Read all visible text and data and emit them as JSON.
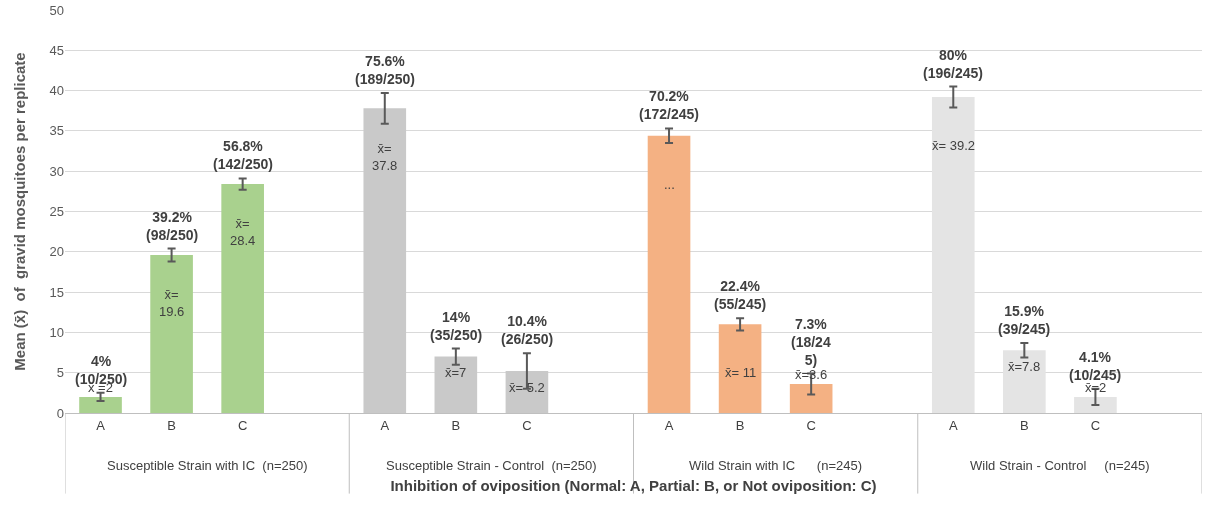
{
  "chart_data": {
    "type": "bar",
    "xlabel": "Inhibition of oviposition (Normal: A, Partial: B, or Not oviposition: C)",
    "ylabel": "Mean (x̄)  of  gravid mosquitoes per replicate",
    "categories": [
      "A",
      "B",
      "C",
      null,
      "A",
      "B",
      "C",
      null,
      "A",
      "B",
      "C",
      null,
      "A",
      "B",
      "C",
      null
    ],
    "series": [
      {
        "colors": [
          "#a9d18e",
          "#a9d18e",
          "#a9d18e",
          "#a9d18e",
          "#c9c9c9",
          "#c9c9c9",
          "#c9c9c9",
          "#c9c9c9",
          "#f4b183",
          "#f4b183",
          "#f4b183",
          "#f4b183",
          "#e4e4e4",
          "#e4e4e4",
          "#e4e4e4",
          "#e4e4e4"
        ],
        "values": [
          2,
          19.6,
          28.4,
          null,
          37.8,
          7,
          5.2,
          null,
          34.4,
          11,
          3.6,
          null,
          39.2,
          7.8,
          2,
          null
        ],
        "errors": [
          0.5,
          0.8,
          0.7,
          null,
          1.9,
          1,
          2.2,
          null,
          0.9,
          0.75,
          1.3,
          null,
          1.3,
          0.9,
          1,
          null
        ],
        "value_labels": [
          "x̄ =2",
          "x̄=\n19.6",
          "x̄=\n28.4",
          null,
          "x̄=\n37.8",
          "x̄=7",
          "x̄= 5.2",
          null,
          "...",
          "x̄= 11",
          "x̄=3.6",
          null,
          "x̄= 39.2",
          "x̄=7.8",
          "x̄=2",
          null
        ]
      }
    ],
    "ylim": [
      0,
      50
    ],
    "yticks": [
      0,
      5,
      10,
      15,
      20,
      25,
      30,
      35,
      40,
      45,
      50
    ],
    "grid": "y",
    "annotations": [
      "4%\n(10/250)",
      "39.2%\n(98/250)",
      "56.8%\n(142/250)",
      "75.6%\n(189/250)",
      "14%\n(35/250)",
      "10.4%\n(26/250)",
      "70.2%\n(172/245)",
      "22.4%\n(55/245)",
      "7.3%\n(18/24\n5)",
      "80%\n(196/245)",
      "15.9%\n(39/245)",
      "4.1%\n(10/245)",
      "Susceptible Strain with IC  (n=250)",
      "Susceptible Strain - Control  (n=250)",
      "Wild Strain with IC      (n=245)",
      "Wild Strain - Control     (n=245)"
    ]
  }
}
